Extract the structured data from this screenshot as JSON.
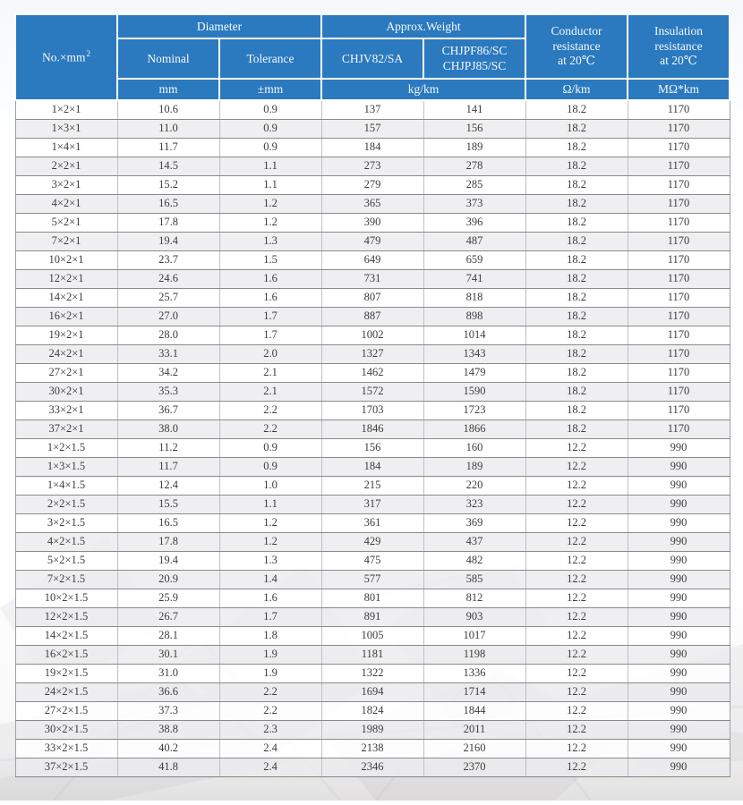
{
  "colors": {
    "header_bg": "#2b79bf",
    "header_text": "#f5f9fd",
    "row_stripe": "#ececee",
    "grid_line": "#8a8a8a"
  },
  "table": {
    "header": {
      "no_mm": {
        "text": "No.×mm",
        "sup": "2"
      },
      "diameter_group": "Diameter",
      "weight_group": "Approx.Weight",
      "conductor": "Conductor\nresistance\nat 20℃",
      "insulation": "Insulation\nresistance\nat 20℃",
      "nominal": "Nominal",
      "tolerance": "Tolerance",
      "chjv": "CHJV82/SA",
      "chjpf": "CHJPF86/SC\nCHJPJ85/SC"
    },
    "units": [
      "mm",
      "±mm",
      "kg/km",
      "Ω/km",
      "MΩ*km"
    ],
    "rows": [
      [
        "1×2×1",
        "10.6",
        "0.9",
        "137",
        "141",
        "18.2",
        "1170"
      ],
      [
        "1×3×1",
        "11.0",
        "0.9",
        "157",
        "156",
        "18.2",
        "1170"
      ],
      [
        "1×4×1",
        "11.7",
        "0.9",
        "184",
        "189",
        "18.2",
        "1170"
      ],
      [
        "2×2×1",
        "14.5",
        "1.1",
        "273",
        "278",
        "18.2",
        "1170"
      ],
      [
        "3×2×1",
        "15.2",
        "1.1",
        "279",
        "285",
        "18.2",
        "1170"
      ],
      [
        "4×2×1",
        "16.5",
        "1.2",
        "365",
        "373",
        "18.2",
        "1170"
      ],
      [
        "5×2×1",
        "17.8",
        "1.2",
        "390",
        "396",
        "18.2",
        "1170"
      ],
      [
        "7×2×1",
        "19.4",
        "1.3",
        "479",
        "487",
        "18.2",
        "1170"
      ],
      [
        "10×2×1",
        "23.7",
        "1.5",
        "649",
        "659",
        "18.2",
        "1170"
      ],
      [
        "12×2×1",
        "24.6",
        "1.6",
        "731",
        "741",
        "18.2",
        "1170"
      ],
      [
        "14×2×1",
        "25.7",
        "1.6",
        "807",
        "818",
        "18.2",
        "1170"
      ],
      [
        "16×2×1",
        "27.0",
        "1.7",
        "887",
        "898",
        "18.2",
        "1170"
      ],
      [
        "19×2×1",
        "28.0",
        "1.7",
        "1002",
        "1014",
        "18.2",
        "1170"
      ],
      [
        "24×2×1",
        "33.1",
        "2.0",
        "1327",
        "1343",
        "18.2",
        "1170"
      ],
      [
        "27×2×1",
        "34.2",
        "2.1",
        "1462",
        "1479",
        "18.2",
        "1170"
      ],
      [
        "30×2×1",
        "35.3",
        "2.1",
        "1572",
        "1590",
        "18.2",
        "1170"
      ],
      [
        "33×2×1",
        "36.7",
        "2.2",
        "1703",
        "1723",
        "18.2",
        "1170"
      ],
      [
        "37×2×1",
        "38.0",
        "2.2",
        "1846",
        "1866",
        "18.2",
        "1170"
      ],
      [
        "1×2×1.5",
        "11.2",
        "0.9",
        "156",
        "160",
        "12.2",
        "990"
      ],
      [
        "1×3×1.5",
        "11.7",
        "0.9",
        "184",
        "189",
        "12.2",
        "990"
      ],
      [
        "1×4×1.5",
        "12.4",
        "1.0",
        "215",
        "220",
        "12.2",
        "990"
      ],
      [
        "2×2×1.5",
        "15.5",
        "1.1",
        "317",
        "323",
        "12.2",
        "990"
      ],
      [
        "3×2×1.5",
        "16.5",
        "1.2",
        "361",
        "369",
        "12.2",
        "990"
      ],
      [
        "4×2×1.5",
        "17.8",
        "1.2",
        "429",
        "437",
        "12.2",
        "990"
      ],
      [
        "5×2×1.5",
        "19.4",
        "1.3",
        "475",
        "482",
        "12.2",
        "990"
      ],
      [
        "7×2×1.5",
        "20.9",
        "1.4",
        "577",
        "585",
        "12.2",
        "990"
      ],
      [
        "10×2×1.5",
        "25.9",
        "1.6",
        "801",
        "812",
        "12.2",
        "990"
      ],
      [
        "12×2×1.5",
        "26.7",
        "1.7",
        "891",
        "903",
        "12.2",
        "990"
      ],
      [
        "14×2×1.5",
        "28.1",
        "1.8",
        "1005",
        "1017",
        "12.2",
        "990"
      ],
      [
        "16×2×1.5",
        "30.1",
        "1.9",
        "1181",
        "1198",
        "12.2",
        "990"
      ],
      [
        "19×2×1.5",
        "31.0",
        "1.9",
        "1322",
        "1336",
        "12.2",
        "990"
      ],
      [
        "24×2×1.5",
        "36.6",
        "2.2",
        "1694",
        "1714",
        "12.2",
        "990"
      ],
      [
        "27×2×1.5",
        "37.3",
        "2.2",
        "1824",
        "1844",
        "12.2",
        "990"
      ],
      [
        "30×2×1.5",
        "38.8",
        "2.3",
        "1989",
        "2011",
        "12.2",
        "990"
      ],
      [
        "33×2×1.5",
        "40.2",
        "2.4",
        "2138",
        "2160",
        "12.2",
        "990"
      ],
      [
        "37×2×1.5",
        "41.8",
        "2.4",
        "2346",
        "2370",
        "12.2",
        "990"
      ]
    ]
  }
}
